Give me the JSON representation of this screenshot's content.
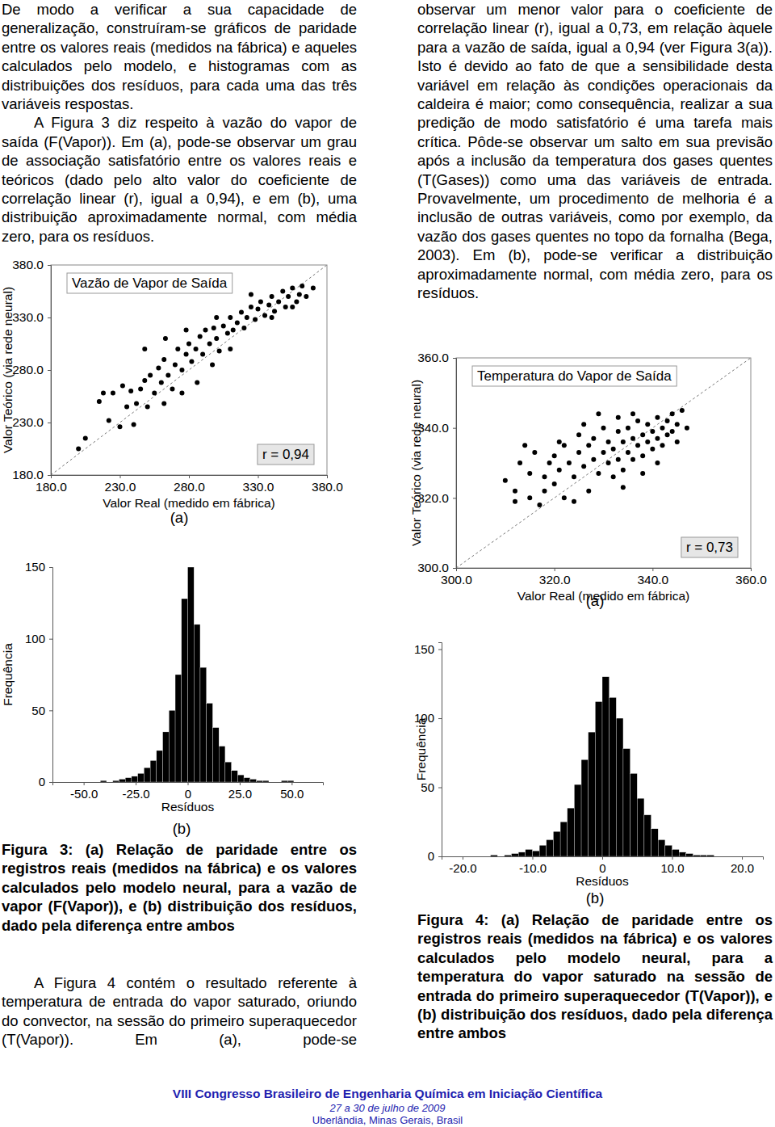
{
  "paragraphs_left_top": [
    "De modo a verificar a sua capacidade de generalização, construíram-se gráficos de paridade entre os valores reais (medidos na fábrica) e aqueles calculados pelo modelo, e histogramas com as distribuições dos resíduos, para cada uma das três variáveis respostas.",
    "A Figura 3 diz respeito à vazão do vapor de saída (F(Vapor)). Em (a), pode-se observar um grau de associação satisfatório entre os valores reais e teóricos (dado pelo alto valor do coeficiente de correlação linear (r), igual a 0,94), e em (b), uma distribuição aproximadamente normal, com média zero, para os resíduos."
  ],
  "panel_labels": [
    "(a)",
    "(b)"
  ],
  "figure_3_caption": "Figura 3: (a) Relação de paridade entre os registros reais (medidos na fábrica) e os valores calculados pelo modelo neural, para a vazão de vapor (F(Vapor)), e (b) distribuição dos resíduos, dado pela diferença entre ambos",
  "paragraph_left_bottom": "A Figura 4 contém o resultado referente à temperatura de entrada do vapor saturado, oriundo do convector, na sessão do primeiro superaquecedor (T(Vapor)). Em (a), pode-se",
  "paragraph_right_top": "observar um menor valor para o coeficiente de correlação linear (r), igual a 0,73, em relação àquele para a vazão de saída, igual a 0,94 (ver Figura 3(a)). Isto é devido ao fato de que a sensibilidade desta variável em relação às condições operacionais da caldeira é maior; como consequência, realizar a sua predição de modo satisfatório é uma tarefa mais crítica. Pôde-se observar um salto em sua previsão após a inclusão da temperatura dos gases quentes (T(Gases)) como uma das variáveis de entrada. Provavelmente, um procedimento de melhoria é a inclusão de outras variáveis, como por exemplo, da vazão dos gases quentes no topo da fornalha (Bega, 2003). Em (b), pode-se verificar a distribuição aproximadamente normal, com média zero, para os resíduos.",
  "figure_4_caption": "Figura 4: (a) Relação de paridade entre os registros reais (medidos na fábrica) e os valores calculados pelo modelo neural, para a temperatura do vapor saturado na sessão de entrada do primeiro superaquecedor (T(Vapor)), e (b) distribuição dos resíduos, dado pela diferença entre ambos",
  "footer": {
    "event": "VIII Congresso Brasileiro de Engenharia Química em Iniciação Científica",
    "dates": "27 a 30 de julho de 2009",
    "place": "Uberlândia, Minas Gerais, Brasil"
  },
  "chart_data": [
    {
      "type": "scatter",
      "title": "Vazão de Vapor de Saída",
      "annotation": "r = 0,94",
      "x_label": "Valor Real (medido em fábrica)",
      "y_label": "Valor Teórico (via rede neural)",
      "color": "#000000",
      "marker": "circle",
      "x": [
        200,
        205,
        215,
        222,
        225,
        230,
        235,
        238,
        240,
        242,
        245,
        248,
        250,
        252,
        255,
        258,
        260,
        262,
        265,
        268,
        270,
        272,
        275,
        278,
        280,
        282,
        285,
        288,
        290,
        292,
        295,
        298,
        300,
        302,
        305,
        308,
        310,
        312,
        315,
        318,
        320,
        322,
        325,
        328,
        330,
        332,
        335,
        338,
        340,
        342,
        345,
        348,
        350,
        352,
        355,
        358,
        360,
        362,
        365,
        370,
        232,
        218,
        248,
        263,
        278,
        300,
        325,
        297,
        275,
        310,
        340,
        355,
        262,
        286
      ],
      "y": [
        205,
        215,
        250,
        232,
        258,
        226,
        245,
        260,
        228,
        248,
        262,
        270,
        245,
        275,
        258,
        282,
        268,
        290,
        275,
        262,
        285,
        300,
        280,
        295,
        305,
        288,
        300,
        312,
        295,
        318,
        305,
        320,
        310,
        298,
        322,
        315,
        330,
        318,
        325,
        335,
        320,
        330,
        340,
        328,
        338,
        345,
        332,
        342,
        350,
        336,
        345,
        355,
        340,
        350,
        358,
        345,
        352,
        360,
        350,
        358,
        265,
        258,
        300,
        310,
        318,
        330,
        352,
        285,
        258,
        300,
        330,
        340,
        248,
        268
      ],
      "xlim": [
        180,
        380
      ],
      "ylim": [
        180,
        380
      ],
      "xticks": [
        {
          "value": 180,
          "label": "180.0"
        },
        {
          "value": 230,
          "label": "230.0"
        },
        {
          "value": 280,
          "label": "280.0"
        },
        {
          "value": 330,
          "label": "330.0"
        },
        {
          "value": 380,
          "label": "380.0"
        }
      ],
      "yticks": [
        {
          "value": 180,
          "label": "180.0"
        },
        {
          "value": 230,
          "label": "230.0"
        },
        {
          "value": 280,
          "label": "280.0"
        },
        {
          "value": 330,
          "label": "330.0"
        },
        {
          "value": 380,
          "label": "380.0"
        }
      ]
    },
    {
      "type": "histogram",
      "x_label": "Resíduos",
      "y_label": "Frequência",
      "color": "#000000",
      "bins": [
        -42,
        -39,
        -36,
        -33,
        -30,
        -27,
        -24,
        -21,
        -18,
        -15,
        -12,
        -9,
        -6,
        -3,
        0,
        3,
        6,
        9,
        12,
        15,
        18,
        21,
        24,
        27,
        30,
        33,
        36,
        39,
        42,
        45,
        48,
        51
      ],
      "values": [
        1,
        0,
        1,
        2,
        3,
        4,
        6,
        10,
        15,
        22,
        35,
        50,
        75,
        128,
        150,
        110,
        80,
        55,
        38,
        25,
        14,
        8,
        5,
        3,
        2,
        1,
        1,
        0,
        0,
        1,
        1
      ],
      "xlim": [
        -65,
        65
      ],
      "ylim": [
        0,
        150
      ],
      "xticks": [
        {
          "value": -50,
          "label": "-50.0"
        },
        {
          "value": -25,
          "label": "-25.0"
        },
        0,
        {
          "value": 25,
          "label": "25.0"
        },
        {
          "value": 50,
          "label": "50.0"
        }
      ],
      "yticks": [
        0,
        50,
        100,
        150
      ]
    },
    {
      "type": "scatter",
      "title": "Temperatura do Vapor de Saída",
      "annotation": "r = 0,73",
      "x_label": "Valor Real (medido em fábrica)",
      "y_label": "Valor Teórico (via rede neural)",
      "color": "#000000",
      "marker": "circle",
      "x": [
        310,
        312,
        313,
        315,
        315,
        316,
        318,
        318,
        319,
        320,
        320,
        321,
        322,
        322,
        323,
        324,
        325,
        325,
        326,
        327,
        327,
        328,
        328,
        329,
        330,
        330,
        331,
        331,
        332,
        332,
        333,
        333,
        334,
        334,
        335,
        335,
        336,
        336,
        337,
        337,
        338,
        338,
        339,
        339,
        340,
        340,
        341,
        341,
        342,
        342,
        343,
        343,
        344,
        344,
        345,
        346,
        347,
        317,
        312,
        324,
        326,
        329,
        336,
        338,
        341,
        345,
        321,
        314,
        333,
        334
      ],
      "y": [
        325,
        322,
        330,
        320,
        327,
        333,
        326,
        322,
        330,
        324,
        332,
        328,
        335,
        320,
        330,
        326,
        333,
        338,
        329,
        322,
        335,
        331,
        337,
        327,
        333,
        340,
        330,
        336,
        326,
        334,
        339,
        331,
        336,
        328,
        340,
        333,
        337,
        331,
        342,
        335,
        338,
        332,
        341,
        336,
        339,
        334,
        343,
        337,
        340,
        335,
        342,
        338,
        344,
        339,
        341,
        345,
        340,
        318,
        319,
        319,
        341,
        344,
        344,
        327,
        330,
        336,
        336,
        335,
        343,
        323
      ],
      "xlim": [
        300,
        360
      ],
      "ylim": [
        300,
        360
      ],
      "xticks": [
        {
          "value": 300,
          "label": "300.0"
        },
        {
          "value": 320,
          "label": "320.0"
        },
        {
          "value": 340,
          "label": "340.0"
        },
        {
          "value": 360,
          "label": "360.0"
        }
      ],
      "yticks": [
        {
          "value": 300,
          "label": "300.0"
        },
        {
          "value": 320,
          "label": "320.0"
        },
        {
          "value": 340,
          "label": "340.0"
        },
        {
          "value": 360,
          "label": "360.0"
        }
      ]
    },
    {
      "type": "histogram",
      "x_label": "Resíduos",
      "y_label": "Frequência",
      "color": "#000000",
      "bins": [
        -16,
        -15,
        -14,
        -13,
        -12,
        -11,
        -10,
        -9,
        -8,
        -7,
        -6,
        -5,
        -4,
        -3,
        -2,
        -1,
        0,
        1,
        2,
        3,
        4,
        5,
        6,
        7,
        8,
        9,
        10,
        11,
        12,
        13,
        14,
        15,
        16
      ],
      "values": [
        1,
        0,
        1,
        2,
        3,
        5,
        4,
        8,
        12,
        18,
        25,
        35,
        52,
        70,
        90,
        112,
        130,
        115,
        100,
        78,
        60,
        42,
        30,
        20,
        12,
        8,
        5,
        3,
        2,
        1,
        1,
        1
      ],
      "xlim": [
        -23,
        23
      ],
      "ylim": [
        0,
        155
      ],
      "xticks": [
        {
          "value": -20,
          "label": "-20.0"
        },
        {
          "value": -10,
          "label": "-10.0"
        },
        0,
        {
          "value": 10,
          "label": "10.0"
        },
        {
          "value": 20,
          "label": "20.0"
        }
      ],
      "yticks": [
        0,
        50,
        100,
        150
      ]
    }
  ]
}
